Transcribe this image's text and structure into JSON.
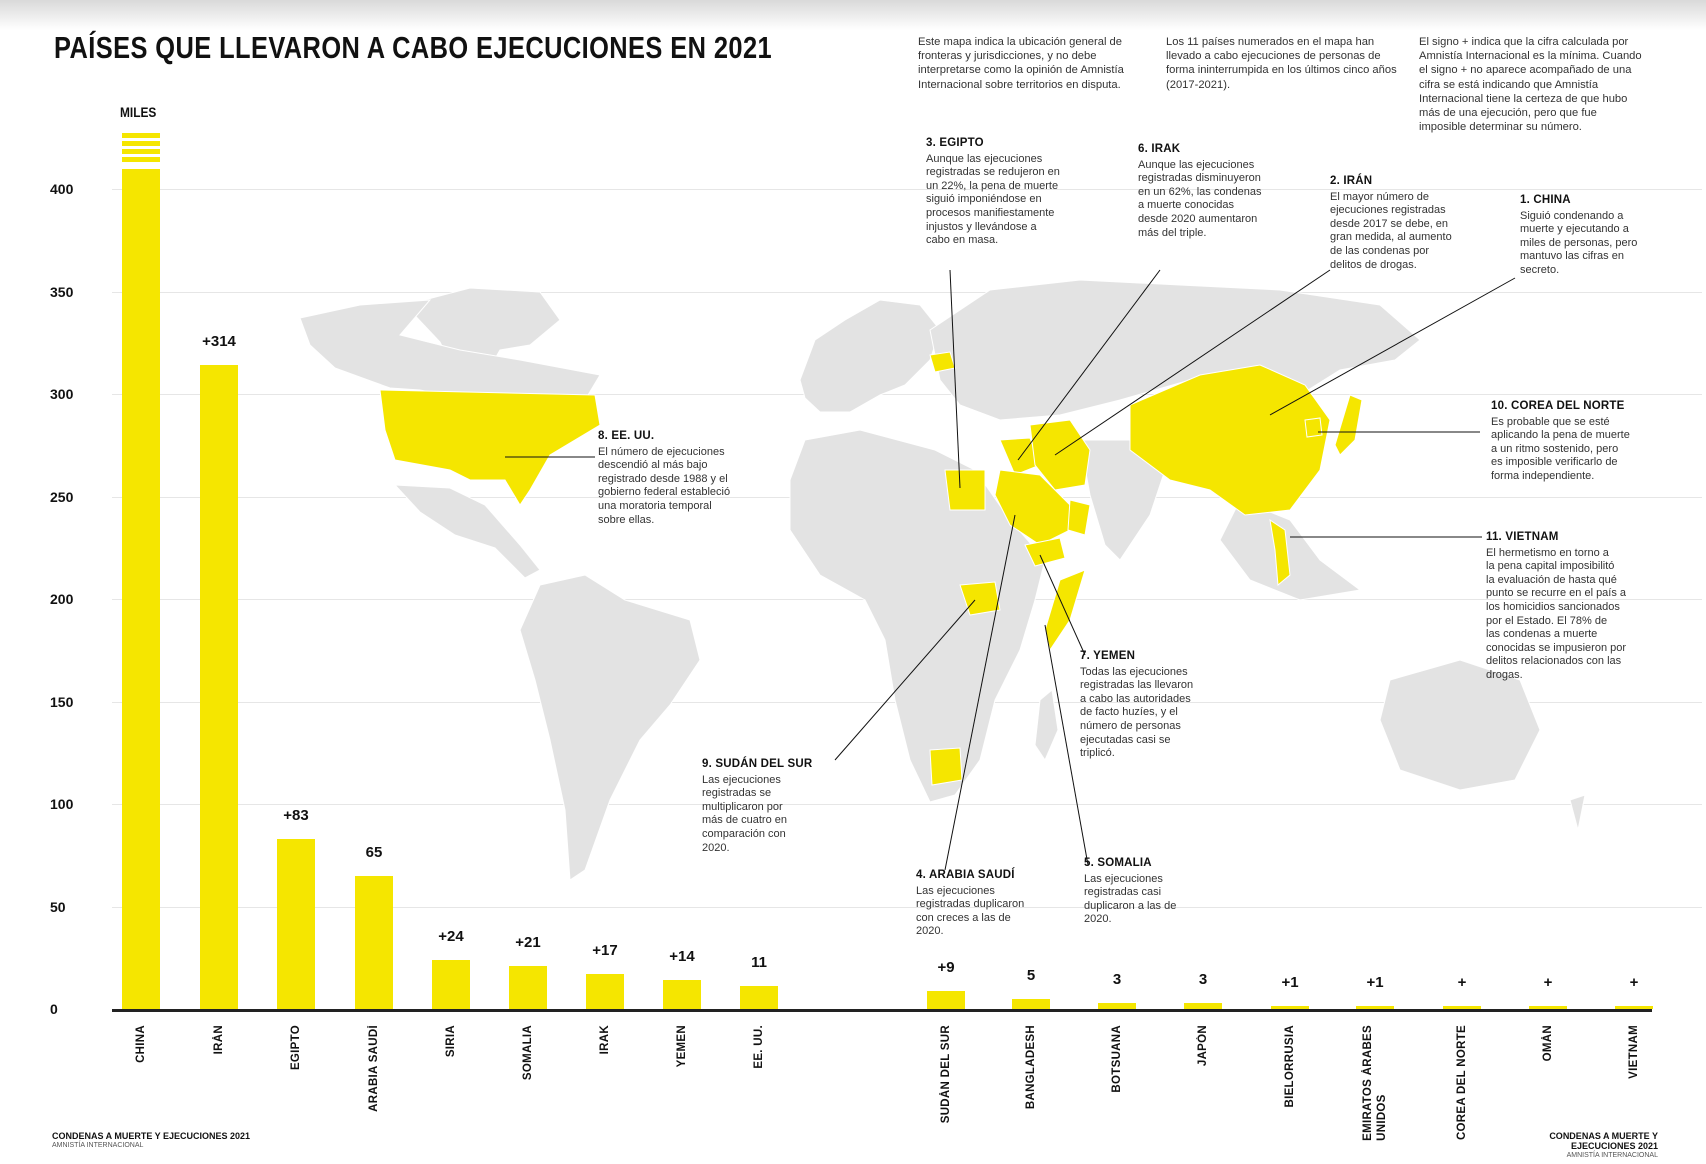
{
  "title": "PAÍSES QUE LLEVARON A CABO EJECUCIONES EN 2021",
  "notes": [
    "Este mapa indica la ubicación general de fronteras y jurisdicciones, y no debe interpretarse como la opinión de Amnistía Internacional sobre territorios en disputa.",
    "Los 11 países numerados en el mapa han llevado a cabo ejecuciones de personas de forma ininterrumpida en los últimos cinco años (2017-2021).",
    "El signo + indica que la cifra calculada por Amnistía Internacional es la mínima. Cuando el signo + no aparece acompañado de una cifra se está indicando que Amnistía Internacional tiene la certeza de que hubo más de una ejecución, pero que fue imposible determinar su número."
  ],
  "colors": {
    "highlight": "#f5e600",
    "land": "#e3e3e3",
    "axis": "#222222"
  },
  "chart_data": {
    "type": "bar",
    "ylabel": "MILES",
    "ylim": [
      0,
      425
    ],
    "yticks": [
      "0",
      "50",
      "100",
      "150",
      "200",
      "250",
      "300",
      "350",
      "400"
    ],
    "categories": [
      "CHINA",
      "IRÁN",
      "EGIPTO",
      "ARABIA SAUDÍ",
      "SIRIA",
      "SOMALIA",
      "IRAK",
      "YEMEN",
      "EE. UU.",
      "SUDÁN DEL SUR",
      "BANGLADESH",
      "BOTSUANA",
      "JAPÓN",
      "BIELORRUSIA",
      "EMIRATOS ÁRABES\nUNIDOS",
      "COREA DEL NORTE",
      "OMÁN",
      "VIETNAM"
    ],
    "values": [
      425,
      314,
      83,
      65,
      24,
      21,
      17,
      14,
      11,
      9,
      5,
      3,
      3,
      1,
      1,
      1,
      1,
      1
    ],
    "labels": [
      "",
      "+314",
      "+83",
      "65",
      "+24",
      "+21",
      "+17",
      "+14",
      "11",
      "+9",
      "5",
      "3",
      "3",
      "+1",
      "+1",
      "+",
      "+",
      "+"
    ],
    "grid": true,
    "legend": "none"
  },
  "annotations": [
    {
      "heading": "3. EGIPTO",
      "text": "Aunque las ejecuciones\nregistradas se redujeron en\nun 22%, la pena de muerte\nsiguió imponiéndose en\nprocesos manifiestamente\ninjustos y llevándose a\ncabo en masa."
    },
    {
      "heading": "6. IRAK",
      "text": "Aunque las ejecuciones\nregistradas disminuyeron\nen un 62%, las condenas\na muerte conocidas\ndesde 2020 aumentaron\nmás del triple."
    },
    {
      "heading": "2. IRÁN",
      "text": "El mayor número de\nejecuciones registradas\ndesde 2017 se debe, en\ngran medida, al aumento\nde las condenas por\ndelitos de drogas."
    },
    {
      "heading": "1. CHINA",
      "text": "Siguió condenando a\nmuerte y ejecutando a\nmiles de personas, pero\nmantuvo las cifras en\nsecreto."
    },
    {
      "heading": "8. EE. UU.",
      "text": "El número de ejecuciones\ndescendió al más bajo\nregistrado desde 1988 y el\ngobierno federal estableció\nuna moratoria temporal\nsobre ellas."
    },
    {
      "heading": "10. COREA DEL NORTE",
      "text": "Es probable que se esté\naplicando la pena de muerte\na un ritmo sostenido, pero\nes imposible verificarlo de\nforma independiente."
    },
    {
      "heading": "11. VIETNAM",
      "text": "El hermetismo en torno a\nla pena capital imposibilitó\nla evaluación de hasta qué\npunto se recurre en el país a\nlos homicidios sancionados\npor el Estado. El 78% de\nlas condenas a muerte\nconocidas se impusieron por\ndelitos relacionados con las\ndrogas."
    },
    {
      "heading": "7. YEMEN",
      "text": "Todas las ejecuciones\nregistradas las llevaron\na cabo las autoridades\nde facto huzíes, y el\nnúmero de personas\nejecutadas casi se\ntriplicó."
    },
    {
      "heading": "9. SUDÁN DEL SUR",
      "text": "Las ejecuciones\nregistradas se\nmultiplicaron por\nmás de cuatro en\ncomparación con\n2020."
    },
    {
      "heading": "4. ARABIA SAUDÍ",
      "text": "Las ejecuciones\nregistradas duplicaron\ncon creces a las de\n2020."
    },
    {
      "heading": "5. SOMALIA",
      "text": "Las ejecuciones\nregistradas casi\nduplicaron a las de\n2020."
    }
  ],
  "footer": {
    "left_title": "CONDENAS A MUERTE Y EJECUCIONES 2021",
    "left_sub": "AMNISTÍA INTERNACIONAL",
    "right_title": "CONDENAS A MUERTE Y EJECUCIONES 2021",
    "right_sub": "AMNISTÍA INTERNACIONAL"
  }
}
